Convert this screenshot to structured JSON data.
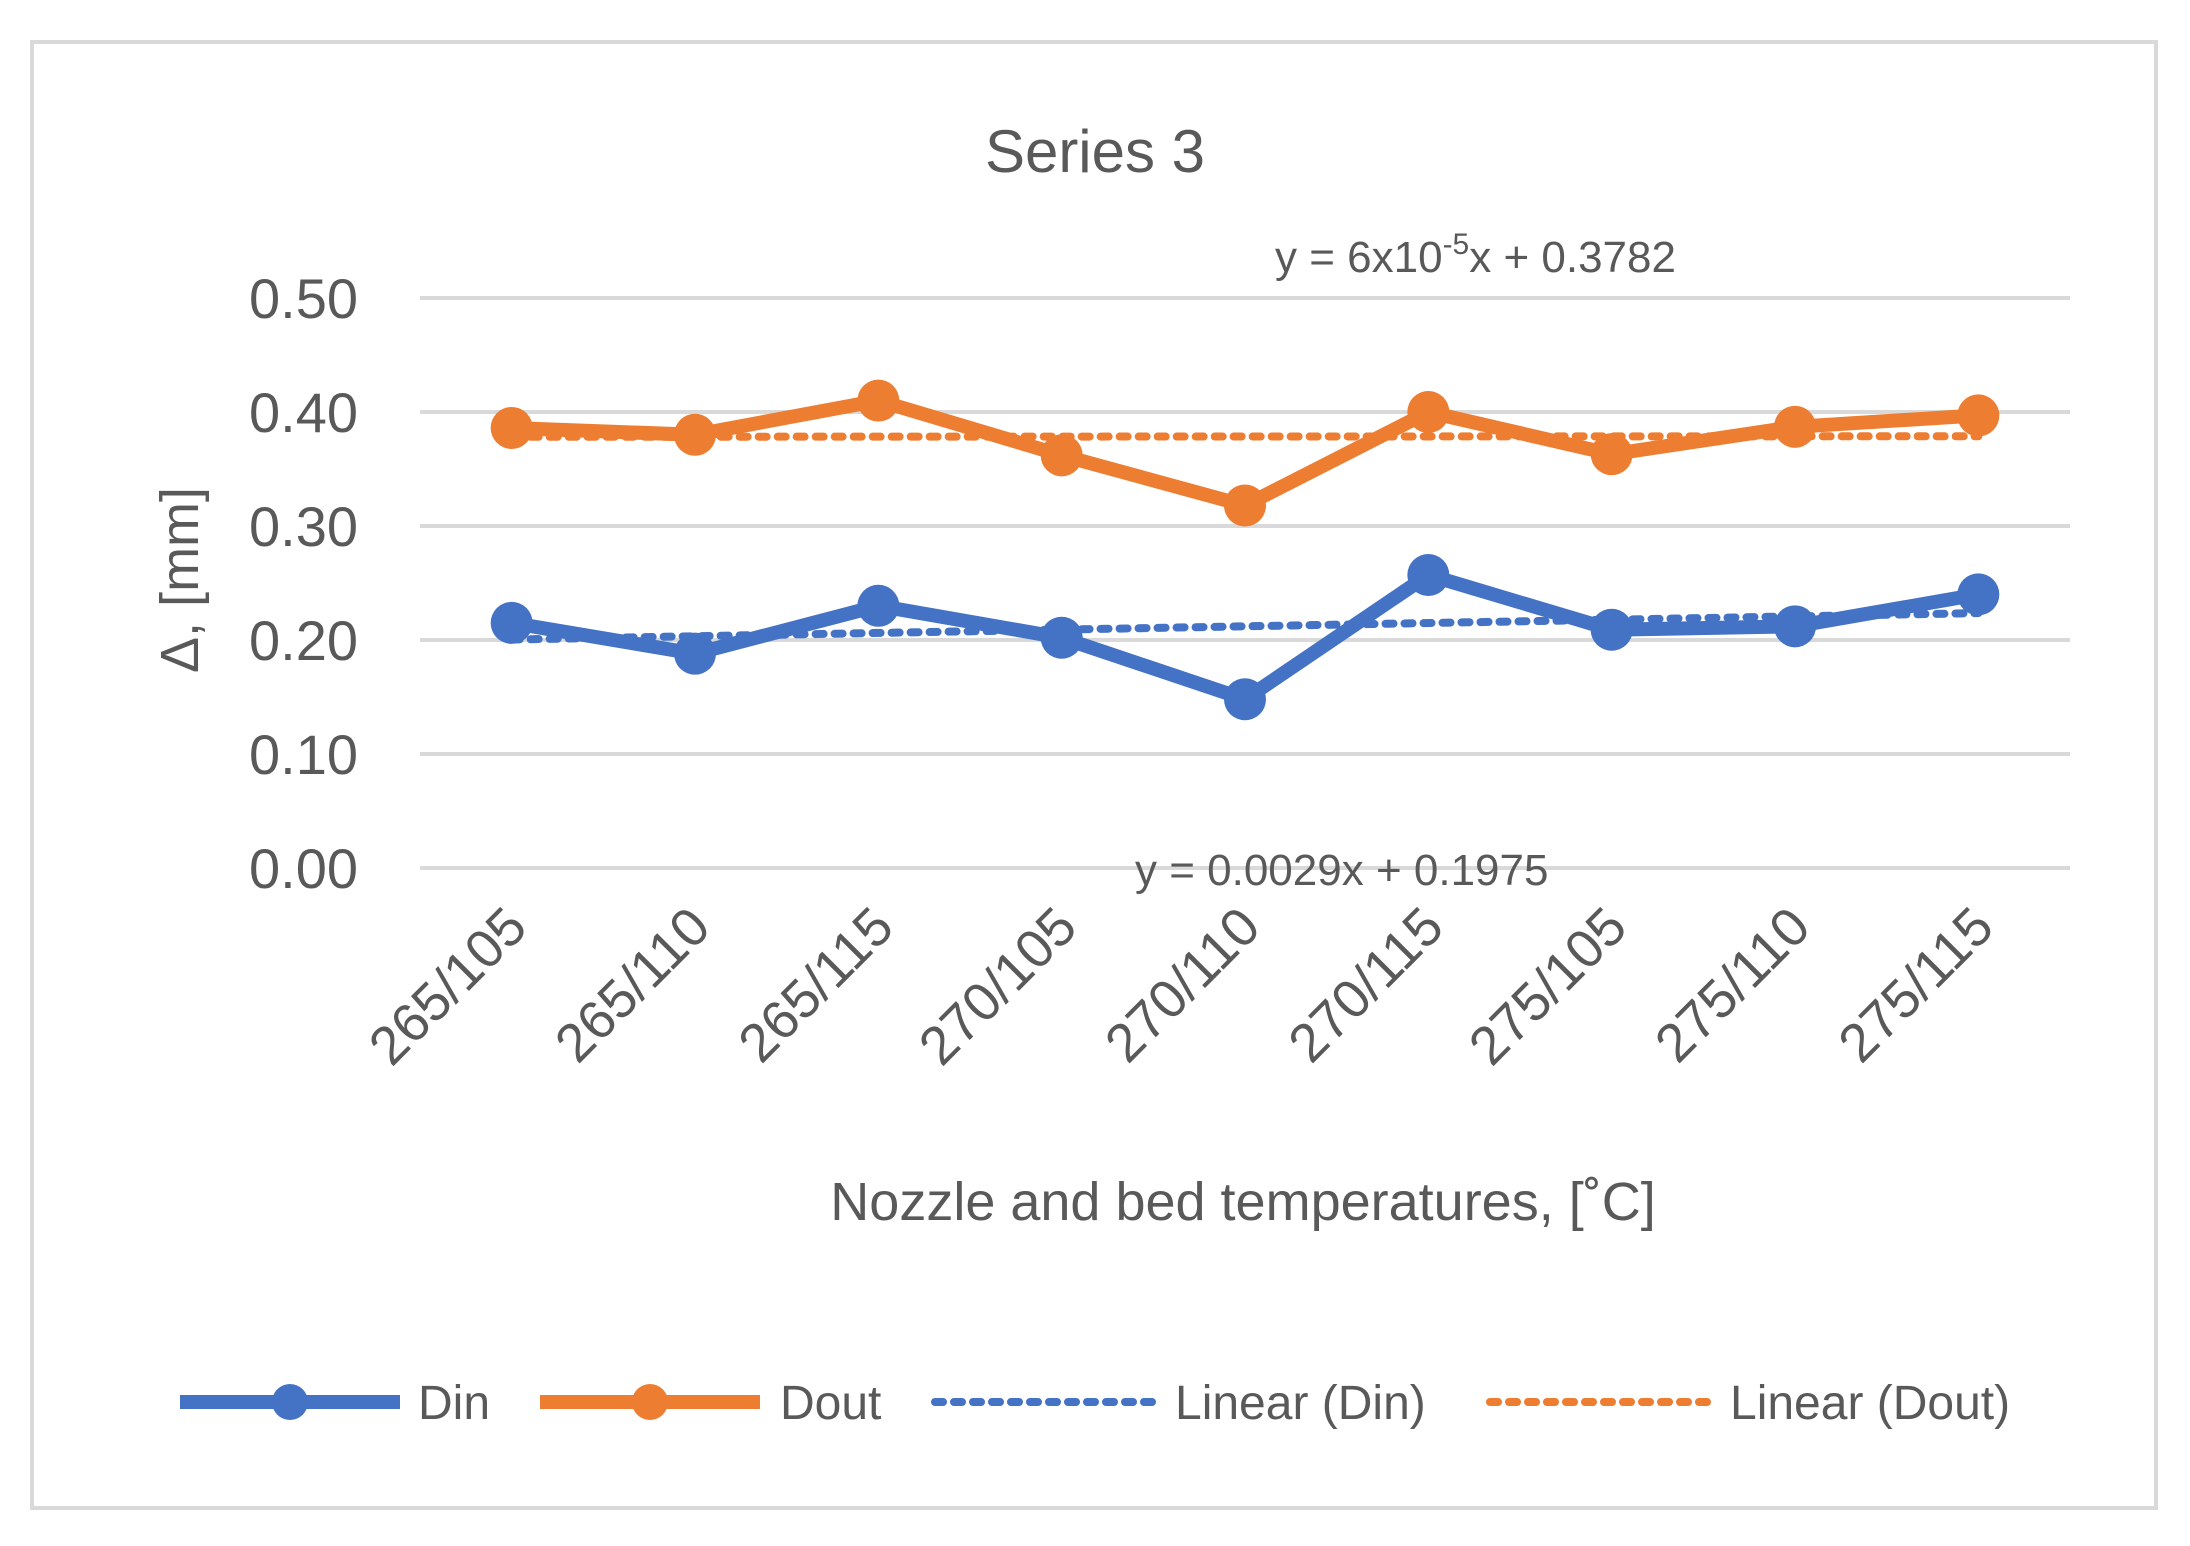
{
  "chart_data": {
    "type": "line",
    "title": "Series 3",
    "xlabel": "Nozzle and bed temperatures, [˚C]",
    "ylabel": "Δ, [mm]",
    "categories": [
      "265/105",
      "265/110",
      "265/115",
      "270/105",
      "270/110",
      "270/115",
      "275/105",
      "275/110",
      "275/115"
    ],
    "ylim": [
      0,
      0.5
    ],
    "yticks": [
      "0.00",
      "0.10",
      "0.20",
      "0.30",
      "0.40",
      "0.50"
    ],
    "grid": true,
    "legend_position": "bottom",
    "series": [
      {
        "name": "Din",
        "color": "#4472c4",
        "style": "solid-markers",
        "values": [
          0.215,
          0.188,
          0.23,
          0.202,
          0.148,
          0.257,
          0.209,
          0.212,
          0.24
        ]
      },
      {
        "name": "Dout",
        "color": "#ed7d31",
        "style": "solid-markers",
        "values": [
          0.386,
          0.38,
          0.41,
          0.362,
          0.318,
          0.4,
          0.363,
          0.387,
          0.397
        ]
      }
    ],
    "trendlines": [
      {
        "name": "Linear (Din)",
        "color": "#4472c4",
        "style": "dotted",
        "slope": 0.0029,
        "intercept": 0.1975,
        "equation": "y = 0.0029x + 0.1975"
      },
      {
        "name": "Linear (Dout)",
        "color": "#ed7d31",
        "style": "dotted",
        "slope": 6e-05,
        "intercept": 0.3782,
        "equation_prefix": "y = 6x10",
        "equation_exp": "-5",
        "equation_suffix": "x + 0.3782"
      }
    ]
  }
}
